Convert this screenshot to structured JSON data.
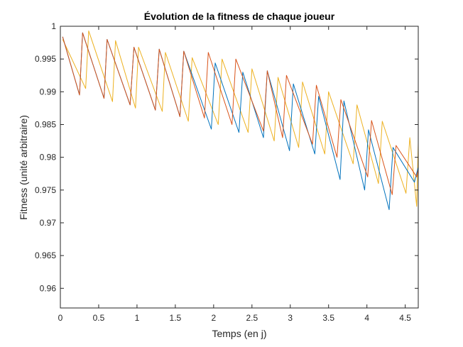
{
  "chart_data": {
    "type": "line",
    "title": "Évolution de la fitness de chaque joueur",
    "xlabel": "Temps (en j)",
    "ylabel": "Fitness (unité arbitraire)",
    "xlim": [
      0,
      4.67
    ],
    "ylim": [
      0.957,
      1.0
    ],
    "xticks": [
      0,
      0.5,
      1,
      1.5,
      2,
      2.5,
      3,
      3.5,
      4,
      4.5
    ],
    "xtick_labels": [
      "0",
      "0.5",
      "1",
      "1.5",
      "2",
      "2.5",
      "3",
      "3.5",
      "4",
      "4.5"
    ],
    "yticks": [
      0.96,
      0.965,
      0.97,
      0.975,
      0.98,
      0.985,
      0.99,
      0.995,
      1.0
    ],
    "ytick_labels": [
      "0.96",
      "0.965",
      "0.97",
      "0.975",
      "0.98",
      "0.985",
      "0.99",
      "0.995",
      "1"
    ],
    "grid": false,
    "series": [
      {
        "color": "#0072BD",
        "x": [
          0.03,
          0.25,
          0.29,
          0.57,
          0.61,
          0.91,
          0.96,
          1.24,
          1.29,
          1.56,
          1.61,
          1.97,
          2.02,
          2.33,
          2.38,
          2.65,
          2.7,
          2.99,
          3.04,
          3.32,
          3.37,
          3.65,
          3.7,
          3.97,
          4.02,
          4.29,
          4.34,
          4.62,
          4.67
        ],
        "y": [
          0.9984,
          0.9895,
          0.999,
          0.989,
          0.998,
          0.988,
          0.9968,
          0.9872,
          0.9965,
          0.9862,
          0.9962,
          0.9843,
          0.9944,
          0.9838,
          0.993,
          0.983,
          0.9932,
          0.981,
          0.9912,
          0.9805,
          0.9893,
          0.9766,
          0.9886,
          0.975,
          0.9842,
          0.972,
          0.9815,
          0.9762,
          0.9785
        ]
      },
      {
        "color": "#D95319",
        "x": [
          0.03,
          0.25,
          0.29,
          0.57,
          0.61,
          0.91,
          0.96,
          1.24,
          1.29,
          1.56,
          1.61,
          1.88,
          1.93,
          2.24,
          2.29,
          2.65,
          2.7,
          2.9,
          2.95,
          3.29,
          3.34,
          3.61,
          3.66,
          4.01,
          4.06,
          4.33,
          4.38,
          4.65,
          4.67
        ],
        "y": [
          0.9984,
          0.9895,
          0.999,
          0.989,
          0.998,
          0.988,
          0.9968,
          0.9872,
          0.9965,
          0.9862,
          0.9962,
          0.986,
          0.996,
          0.985,
          0.995,
          0.984,
          0.9932,
          0.983,
          0.9925,
          0.982,
          0.991,
          0.98,
          0.9888,
          0.977,
          0.9856,
          0.9743,
          0.9818,
          0.977,
          0.9782
        ]
      },
      {
        "color": "#EDB120",
        "x": [
          0.03,
          0.33,
          0.37,
          0.68,
          0.72,
          0.98,
          1.02,
          1.33,
          1.37,
          1.67,
          1.72,
          2.06,
          2.11,
          2.45,
          2.5,
          2.79,
          2.84,
          3.11,
          3.16,
          3.45,
          3.5,
          3.82,
          3.87,
          4.15,
          4.2,
          4.51,
          4.56,
          4.65,
          4.67
        ],
        "y": [
          0.998,
          0.9905,
          0.9993,
          0.9885,
          0.9978,
          0.9875,
          0.9968,
          0.987,
          0.996,
          0.9855,
          0.9952,
          0.985,
          0.995,
          0.9838,
          0.9935,
          0.9825,
          0.9922,
          0.9815,
          0.9915,
          0.9805,
          0.99,
          0.979,
          0.988,
          0.976,
          0.9855,
          0.9745,
          0.983,
          0.9725,
          0.9822
        ]
      }
    ]
  }
}
